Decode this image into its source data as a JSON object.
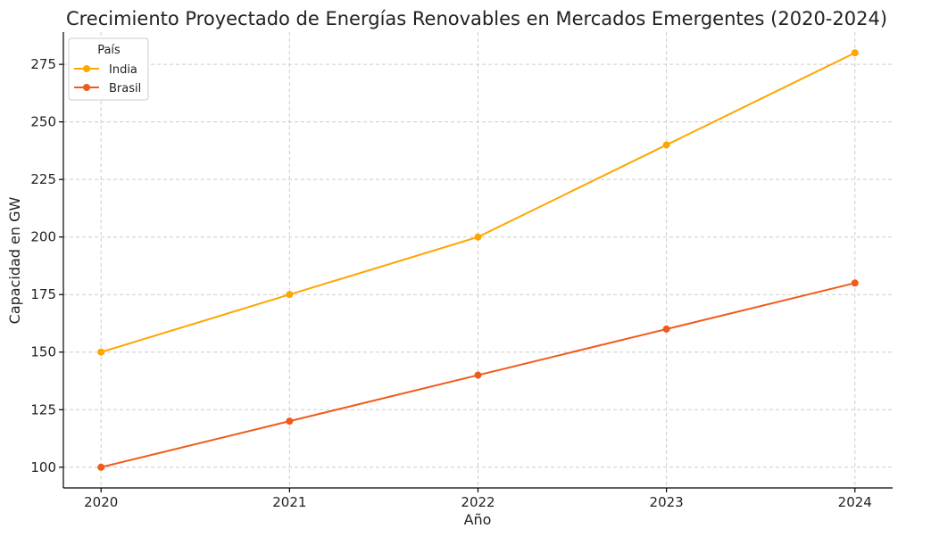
{
  "chart_data": {
    "type": "line",
    "title": "Crecimiento Proyectado de Energías Renovables en Mercados Emergentes (2020-2024)",
    "xlabel": "Año",
    "ylabel": "Capacidad en GW",
    "x": [
      2020,
      2021,
      2022,
      2023,
      2024
    ],
    "x_tick_labels": [
      "2020",
      "2021",
      "2022",
      "2023",
      "2024"
    ],
    "y_ticks": [
      100,
      125,
      150,
      175,
      200,
      225,
      250,
      275
    ],
    "y_tick_labels": [
      "100",
      "125",
      "150",
      "175",
      "200",
      "225",
      "250",
      "275"
    ],
    "ylim": [
      91,
      289
    ],
    "xlim": [
      2019.8,
      2024.2
    ],
    "grid": true,
    "legend": {
      "title": "País",
      "placement": "top-left"
    },
    "series": [
      {
        "name": "India",
        "color": "#FFA500",
        "values": [
          150,
          175,
          200,
          240,
          280
        ]
      },
      {
        "name": "Brasil",
        "color": "#F05A1A",
        "values": [
          100,
          120,
          140,
          160,
          180
        ]
      }
    ]
  }
}
